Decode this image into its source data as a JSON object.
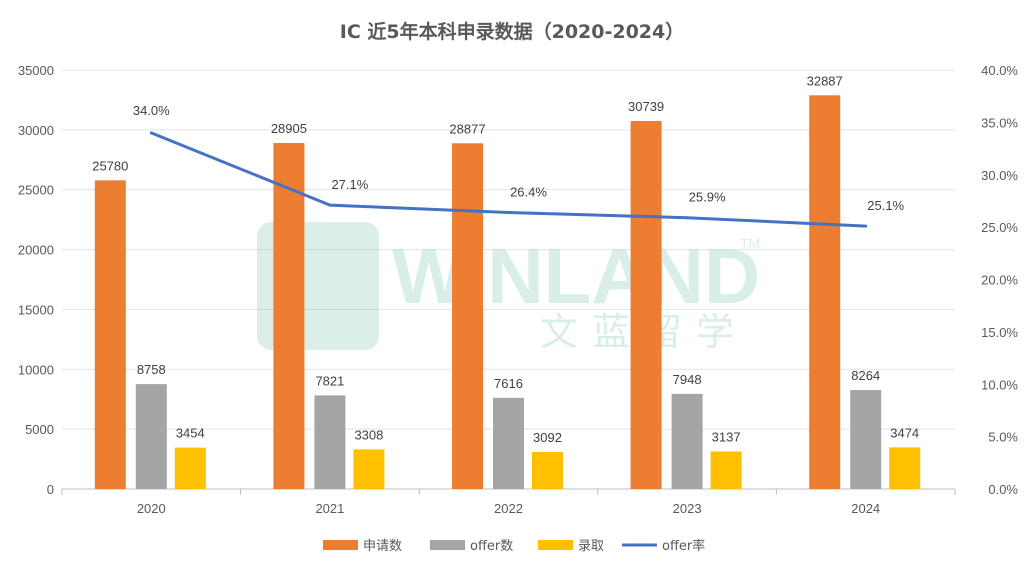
{
  "chart_data": {
    "type": "bar",
    "title": "IC 近5年本科申录数据（2020-2024）",
    "categories": [
      "2020",
      "2021",
      "2022",
      "2023",
      "2024"
    ],
    "series": [
      {
        "name": "申请数",
        "kind": "bar",
        "axis": "left",
        "color": "#ED7D31",
        "values": [
          25780,
          28905,
          28877,
          30739,
          32887
        ]
      },
      {
        "name": "offer数",
        "kind": "bar",
        "axis": "left",
        "color": "#A5A5A5",
        "values": [
          8758,
          7821,
          7616,
          7948,
          8264
        ]
      },
      {
        "name": "录取",
        "kind": "bar",
        "axis": "left",
        "color": "#FFC000",
        "values": [
          3454,
          3308,
          3092,
          3137,
          3474
        ]
      },
      {
        "name": "offer率",
        "kind": "line",
        "axis": "right",
        "color": "#4472C4",
        "values": [
          34.0,
          27.1,
          26.4,
          25.9,
          25.1
        ],
        "labels": [
          "34.0%",
          "27.1%",
          "26.4%",
          "25.9%",
          "25.1%"
        ]
      }
    ],
    "left_axis": {
      "range": [
        0,
        35000
      ],
      "ticks": [
        "0",
        "5000",
        "10000",
        "15000",
        "20000",
        "25000",
        "30000",
        "35000"
      ]
    },
    "right_axis": {
      "range": [
        0,
        40
      ],
      "ticks": [
        "0.0%",
        "5.0%",
        "10.0%",
        "15.0%",
        "20.0%",
        "25.0%",
        "30.0%",
        "35.0%",
        "40.0%"
      ]
    },
    "grid": true,
    "legend": "bottom"
  },
  "watermark": {
    "text": "WINLAND",
    "subtext": "文蓝留学",
    "tm": "TM"
  }
}
